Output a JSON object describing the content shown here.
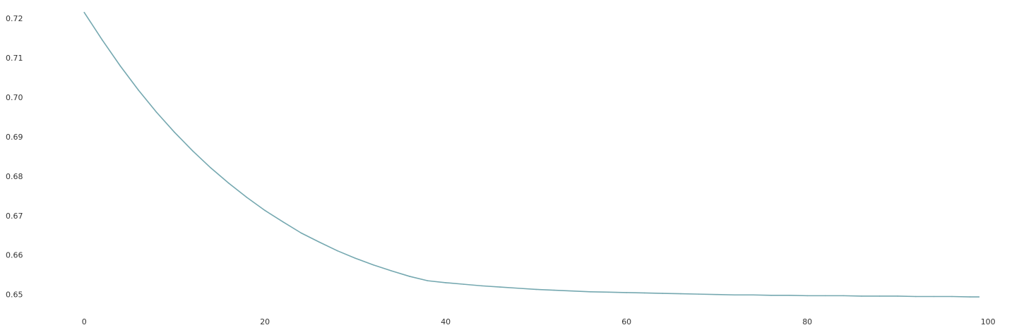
{
  "chart_data": {
    "type": "line",
    "title": "",
    "xlabel": "",
    "ylabel": "",
    "xlim": [
      -4,
      101
    ],
    "ylim": [
      0.6453,
      0.7232
    ],
    "x_ticks": [
      0,
      20,
      40,
      60,
      80,
      100
    ],
    "x_tick_labels": [
      "0",
      "20",
      "40",
      "60",
      "80",
      "100"
    ],
    "y_ticks": [
      0.65,
      0.66,
      0.67,
      0.68,
      0.69,
      0.7,
      0.71,
      0.72
    ],
    "y_tick_labels": [
      "0.65",
      "0.66",
      "0.67",
      "0.68",
      "0.69",
      "0.70",
      "0.71",
      "0.72"
    ],
    "grid": false,
    "series": [
      {
        "color": "#75a8b0",
        "x": [
          0,
          2,
          4,
          6,
          8,
          10,
          12,
          14,
          16,
          18,
          20,
          22,
          24,
          26,
          28,
          30,
          32,
          34,
          36,
          38,
          40,
          42,
          44,
          46,
          48,
          50,
          52,
          54,
          56,
          58,
          60,
          62,
          64,
          66,
          68,
          70,
          72,
          74,
          76,
          78,
          80,
          82,
          84,
          86,
          88,
          90,
          92,
          94,
          96,
          98,
          99
        ],
        "y": [
          0.7215,
          0.7145,
          0.7079,
          0.7018,
          0.6962,
          0.6911,
          0.6864,
          0.6821,
          0.6782,
          0.6746,
          0.6713,
          0.6684,
          0.6656,
          0.6633,
          0.6611,
          0.6592,
          0.6575,
          0.656,
          0.6546,
          0.6535,
          0.653,
          0.6526,
          0.6522,
          0.6519,
          0.6516,
          0.6513,
          0.6511,
          0.6509,
          0.6507,
          0.6506,
          0.6505,
          0.6504,
          0.6503,
          0.6502,
          0.6501,
          0.65,
          0.6499,
          0.6499,
          0.6498,
          0.6498,
          0.6497,
          0.6497,
          0.6497,
          0.6496,
          0.6496,
          0.6496,
          0.6495,
          0.6495,
          0.6495,
          0.6494,
          0.6494
        ]
      }
    ]
  }
}
